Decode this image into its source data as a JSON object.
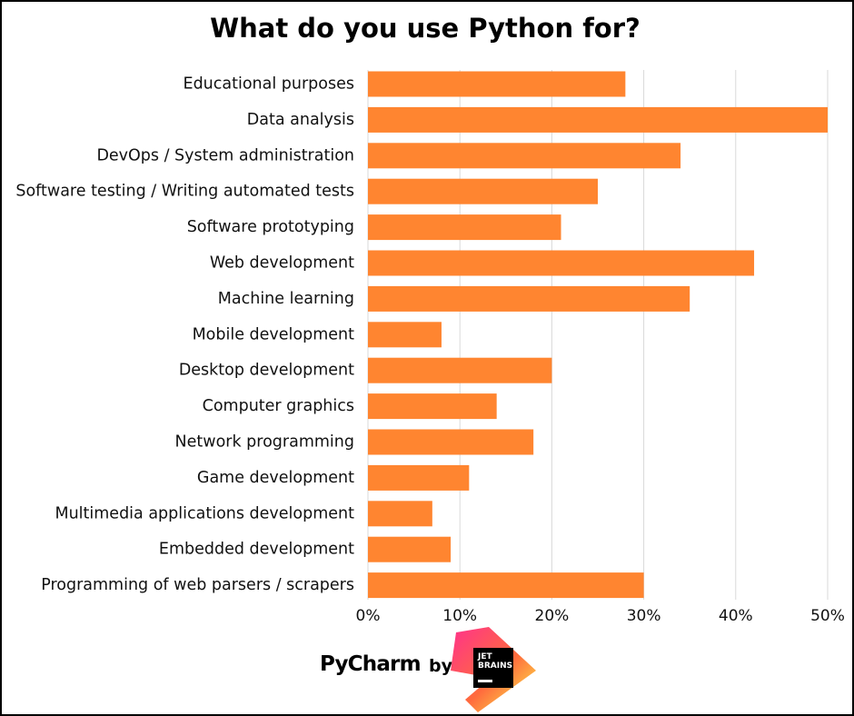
{
  "chart_data": {
    "type": "bar",
    "orientation": "horizontal",
    "title": "What do you use Python for?",
    "categories": [
      "Educational purposes",
      "Data analysis",
      "DevOps / System administration",
      "Software testing / Writing automated tests",
      "Software prototyping",
      "Web development",
      "Machine learning",
      "Mobile development",
      "Desktop development",
      "Computer graphics",
      "Network programming",
      "Game development",
      "Multimedia applications development",
      "Embedded development",
      "Programming of web parsers / scrapers"
    ],
    "values": [
      28,
      50,
      34,
      25,
      21,
      42,
      35,
      8,
      20,
      14,
      18,
      11,
      7,
      9,
      30
    ],
    "xlim": [
      0,
      50
    ],
    "xticks": [
      0,
      10,
      20,
      30,
      40,
      50
    ],
    "tick_labels": [
      "0%",
      "10%",
      "20%",
      "30%",
      "40%",
      "50%"
    ],
    "xlabel": "",
    "ylabel": "",
    "grid": "vertical",
    "legend": "none",
    "bar_color": "#FF8530"
  },
  "branding": {
    "product": "PyCharm",
    "by": "by",
    "company_line1": "JET",
    "company_line2": "BRAINS"
  },
  "colors": {
    "bar": "#FF8530",
    "grid": "#d9d9d9",
    "text": "#111111",
    "border": "#000000"
  }
}
